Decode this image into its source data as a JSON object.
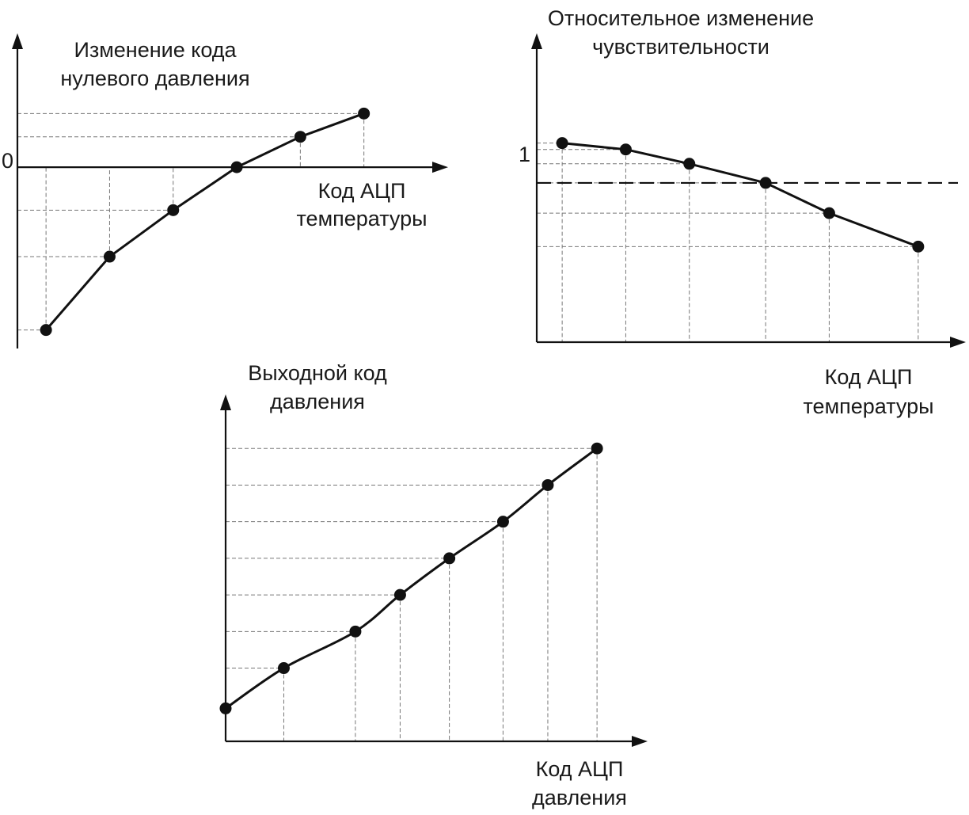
{
  "chart_data": [
    {
      "type": "line",
      "ylabel": [
        "Изменение кода",
        "нулевого давления"
      ],
      "xlabel": [
        "Код АЦП",
        "температуры"
      ],
      "y_tick_labels": [
        "0"
      ],
      "x": [
        1,
        2,
        3,
        4,
        5,
        6
      ],
      "y": [
        -0.91,
        -0.5,
        -0.24,
        0.0,
        0.17,
        0.3
      ],
      "xlim": [
        0.55,
        7.1
      ],
      "ylim": [
        -1.0,
        0.66
      ],
      "grid": "dashed guide lines from each point to both axes",
      "smooth": false
    },
    {
      "type": "line",
      "ylabel": [
        "Относительное изменение",
        "чувствительности"
      ],
      "xlabel": [
        "Код АЦП",
        "температуры"
      ],
      "y_tick_labels": [
        "1"
      ],
      "reference_line": {
        "y": 1,
        "style": "dashed"
      },
      "x": [
        1,
        2,
        3,
        4.2,
        5.2,
        6.6
      ],
      "y": [
        1.25,
        1.21,
        1.12,
        1.0,
        0.81,
        0.6
      ],
      "xlim": [
        0.6,
        7.1
      ],
      "ylim": [
        0.0,
        1.85
      ],
      "grid": "dashed guide lines from each point to both axes",
      "smooth": false
    },
    {
      "type": "line",
      "ylabel": [
        "Выходной код",
        "давления"
      ],
      "xlabel": [
        "Код АЦП",
        "давления"
      ],
      "x": [
        0,
        1.3,
        2.9,
        3.9,
        5.0,
        6.2,
        7.2,
        8.3
      ],
      "y": [
        0.45,
        1.0,
        1.5,
        2.0,
        2.5,
        3.0,
        3.5,
        4.0
      ],
      "xlim": [
        0,
        9.2
      ],
      "ylim": [
        0,
        4.5
      ],
      "grid": "dashed guide lines from each point to both axes",
      "smooth": true
    }
  ]
}
